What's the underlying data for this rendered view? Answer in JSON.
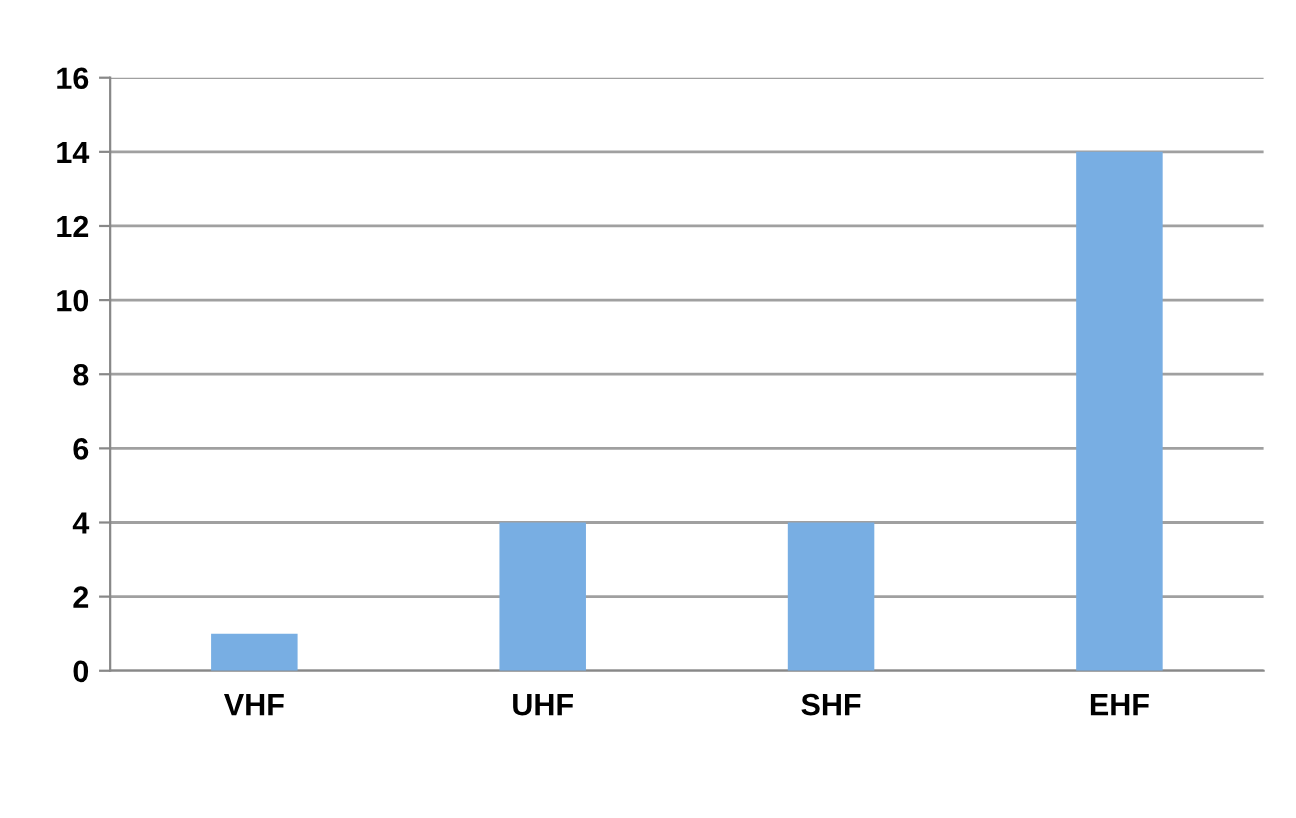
{
  "chart_data": {
    "type": "bar",
    "categories": [
      "VHF",
      "UHF",
      "SHF",
      "EHF"
    ],
    "values": [
      1,
      4,
      4,
      14
    ],
    "color": "#78aee3",
    "ylim": [
      0,
      16
    ],
    "yticks": [
      0,
      2,
      4,
      6,
      8,
      10,
      12,
      14,
      16
    ],
    "grid": "y",
    "legend": false
  }
}
